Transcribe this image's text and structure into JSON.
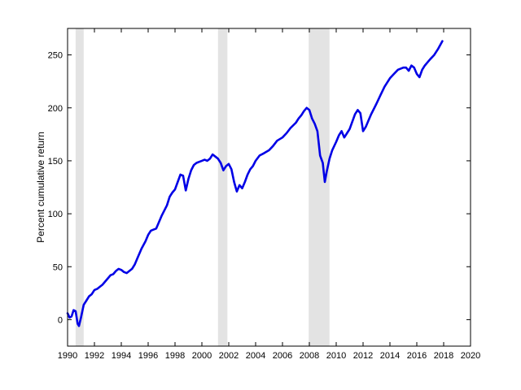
{
  "chart_data": {
    "type": "line",
    "title": "",
    "xlabel": "",
    "ylabel": "Percent cumulative return",
    "xlim": [
      1990,
      2020
    ],
    "ylim": [
      -25,
      275
    ],
    "x_ticks": [
      1990,
      1992,
      1994,
      1996,
      1998,
      2000,
      2002,
      2004,
      2006,
      2008,
      2010,
      2012,
      2014,
      2016,
      2018,
      2020
    ],
    "y_ticks": [
      0,
      50,
      100,
      150,
      200,
      250
    ],
    "grid": false,
    "legend": "none",
    "line_color": "#0000e6",
    "shade_color": "#e3e3e3",
    "recession_shading": [
      [
        1990.6,
        1991.2
      ],
      [
        2001.2,
        2001.9
      ],
      [
        2007.95,
        2009.5
      ]
    ],
    "series": [
      {
        "x": [
          1990.0,
          1990.15,
          1990.3,
          1990.45,
          1990.6,
          1990.75,
          1990.85,
          1991.0,
          1991.2,
          1991.4,
          1991.6,
          1991.8,
          1992.0,
          1992.2,
          1992.4,
          1992.6,
          1992.8,
          1993.0,
          1993.2,
          1993.4,
          1993.6,
          1993.8,
          1994.0,
          1994.2,
          1994.4,
          1994.6,
          1994.8,
          1995.0,
          1995.2,
          1995.5,
          1995.8,
          1996.0,
          1996.2,
          1996.4,
          1996.6,
          1996.8,
          1997.0,
          1997.2,
          1997.4,
          1997.6,
          1997.8,
          1998.0,
          1998.2,
          1998.4,
          1998.6,
          1998.8,
          1999.0,
          1999.2,
          1999.4,
          1999.6,
          1999.8,
          2000.0,
          2000.2,
          2000.4,
          2000.6,
          2000.8,
          2001.0,
          2001.2,
          2001.4,
          2001.6,
          2001.8,
          2002.0,
          2002.2,
          2002.4,
          2002.6,
          2002.8,
          2003.0,
          2003.2,
          2003.4,
          2003.6,
          2003.8,
          2004.0,
          2004.3,
          2004.6,
          2005.0,
          2005.3,
          2005.6,
          2006.0,
          2006.3,
          2006.6,
          2007.0,
          2007.2,
          2007.4,
          2007.6,
          2007.8,
          2008.0,
          2008.2,
          2008.4,
          2008.6,
          2008.8,
          2009.0,
          2009.15,
          2009.3,
          2009.5,
          2009.7,
          2010.0,
          2010.2,
          2010.4,
          2010.6,
          2010.8,
          2011.0,
          2011.2,
          2011.4,
          2011.6,
          2011.8,
          2012.0,
          2012.2,
          2012.4,
          2012.6,
          2012.8,
          2013.0,
          2013.3,
          2013.6,
          2014.0,
          2014.3,
          2014.6,
          2015.0,
          2015.2,
          2015.4,
          2015.6,
          2015.8,
          2016.0,
          2016.2,
          2016.4,
          2016.6,
          2016.8,
          2017.0,
          2017.3,
          2017.6,
          2017.9
        ],
        "y": [
          6,
          2,
          3,
          9,
          8,
          -4,
          -6,
          2,
          14,
          18,
          22,
          24,
          28,
          29,
          31,
          33,
          36,
          39,
          42,
          43,
          46,
          48,
          47,
          45,
          44,
          46,
          48,
          52,
          58,
          67,
          74,
          80,
          84,
          85,
          86,
          92,
          98,
          103,
          108,
          116,
          120,
          123,
          130,
          137,
          136,
          122,
          133,
          141,
          146,
          148,
          149,
          150,
          151,
          150,
          152,
          156,
          154,
          152,
          148,
          141,
          145,
          147,
          142,
          130,
          121,
          127,
          124,
          130,
          137,
          142,
          145,
          150,
          155,
          157,
          160,
          164,
          169,
          172,
          176,
          181,
          186,
          190,
          193,
          197,
          200,
          198,
          190,
          185,
          178,
          155,
          148,
          130,
          140,
          152,
          160,
          168,
          174,
          178,
          172,
          176,
          180,
          187,
          194,
          198,
          195,
          178,
          182,
          188,
          194,
          199,
          204,
          212,
          220,
          228,
          232,
          236,
          238,
          238,
          235,
          240,
          238,
          232,
          229,
          236,
          240,
          243,
          246,
          250,
          256,
          263
        ]
      }
    ]
  }
}
